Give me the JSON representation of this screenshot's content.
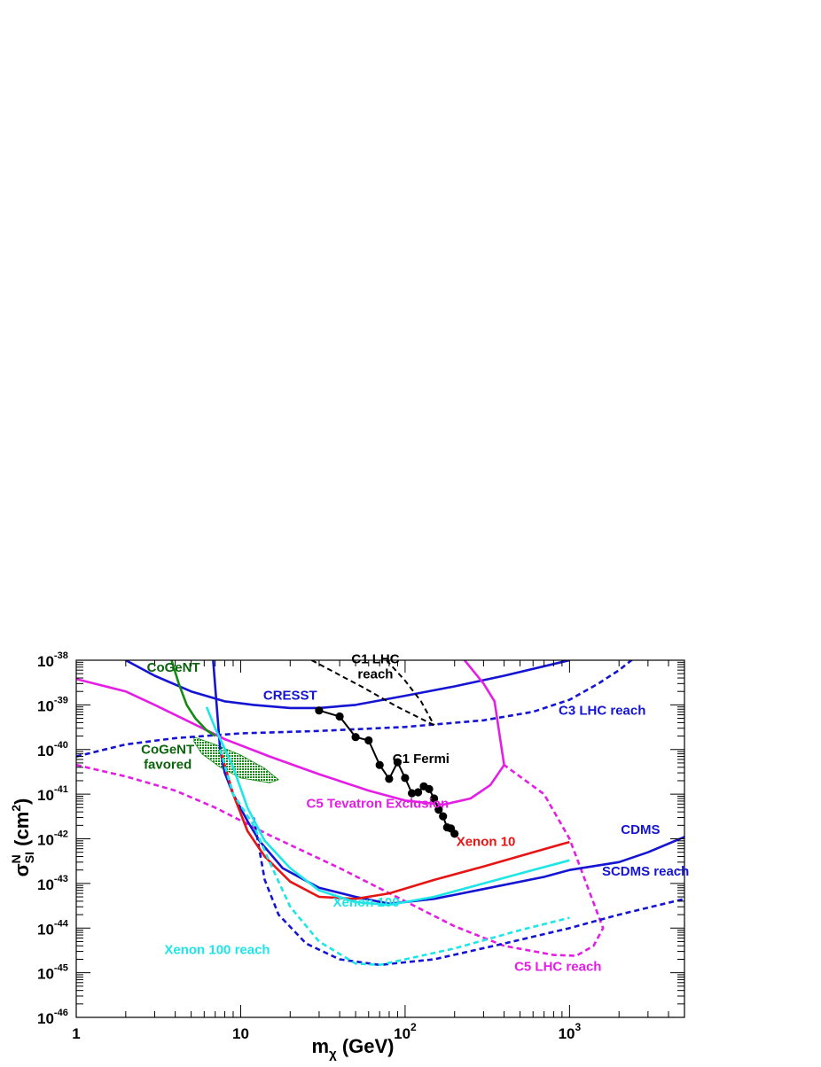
{
  "chart_data": {
    "type": "line",
    "xscale": "log",
    "yscale": "log",
    "xlim": [
      1,
      5000
    ],
    "ylim": [
      1e-46,
      1e-38
    ],
    "xlabel": {
      "main": "m",
      "sub": "χ",
      "unit": " (GeV)"
    },
    "ylabel": {
      "main": "σ",
      "sup": "N",
      "sub": "SI",
      "unit": " (cm",
      "unit_sup": "2",
      "unit_end": ")"
    },
    "x_ticks": [
      {
        "value": 1,
        "label": "1"
      },
      {
        "value": 10,
        "label": "10"
      },
      {
        "value": 100,
        "label": "10",
        "exp": "2"
      },
      {
        "value": 1000,
        "label": "10",
        "exp": "3"
      }
    ],
    "y_ticks": [
      {
        "value": 1e-38,
        "label": "10",
        "exp": "-38"
      },
      {
        "value": 1e-39,
        "label": "10",
        "exp": "-39"
      },
      {
        "value": 1e-40,
        "label": "10",
        "exp": "-40"
      },
      {
        "value": 1e-41,
        "label": "10",
        "exp": "-41"
      },
      {
        "value": 1e-42,
        "label": "10",
        "exp": "-42"
      },
      {
        "value": 1e-43,
        "label": "10",
        "exp": "-43"
      },
      {
        "value": 1e-44,
        "label": "10",
        "exp": "-44"
      },
      {
        "value": 1e-45,
        "label": "10",
        "exp": "-45"
      },
      {
        "value": 1e-46,
        "label": "10",
        "exp": "-46"
      }
    ],
    "colors": {
      "blue": "#1414d2",
      "magenta": "#e41ee4",
      "cyan": "#1ee6e6",
      "red": "#e61414",
      "green": "#148c14",
      "dark_green": "#0c640c",
      "black": "#000000"
    },
    "series": [
      {
        "key": "cresst",
        "color": "blue",
        "dash": false,
        "points": [
          [
            2,
            1e-38
          ],
          [
            3,
            4.5e-39
          ],
          [
            5,
            2e-39
          ],
          [
            8,
            1.2e-39
          ],
          [
            12,
            1e-39
          ],
          [
            20,
            8.5e-40
          ],
          [
            30,
            8.5e-40
          ],
          [
            50,
            1e-39
          ],
          [
            100,
            1.6e-39
          ],
          [
            200,
            2.6e-39
          ],
          [
            400,
            4.5e-39
          ],
          [
            1000,
            1e-38
          ]
        ]
      },
      {
        "key": "c3-lhc-reach",
        "color": "blue",
        "dash": true,
        "points": [
          [
            1,
            7e-41
          ],
          [
            2,
            1.3e-40
          ],
          [
            4,
            1.8e-40
          ],
          [
            10,
            2.3e-40
          ],
          [
            30,
            2.6e-40
          ],
          [
            100,
            3.2e-40
          ],
          [
            300,
            4.5e-40
          ],
          [
            600,
            7e-40
          ],
          [
            1000,
            1.3e-39
          ],
          [
            1500,
            3e-39
          ],
          [
            2000,
            6e-39
          ],
          [
            2600,
            1.3e-38
          ]
        ]
      },
      {
        "key": "c5-tevatron",
        "color": "magenta",
        "dash": false,
        "points": [
          [
            1,
            3.8e-39
          ],
          [
            2,
            2e-39
          ],
          [
            3,
            1e-39
          ],
          [
            5,
            4e-40
          ],
          [
            8,
            1.7e-40
          ],
          [
            15,
            7e-41
          ],
          [
            30,
            2.8e-41
          ],
          [
            60,
            1.2e-41
          ],
          [
            100,
            7.2e-42
          ],
          [
            170,
            5.8e-42
          ],
          [
            250,
            8e-42
          ],
          [
            330,
            1.6e-41
          ],
          [
            400,
            4.5e-41
          ]
        ]
      },
      {
        "key": "c5-tevatron-upper",
        "color": "magenta",
        "dash": false,
        "points": [
          [
            230,
            1e-38
          ],
          [
            300,
            3e-39
          ],
          [
            350,
            1.2e-39
          ],
          [
            400,
            4.5e-41
          ]
        ]
      },
      {
        "key": "c5-lhc-reach",
        "color": "magenta",
        "dash": true,
        "points": [
          [
            1,
            4.5e-41
          ],
          [
            2,
            2.5e-41
          ],
          [
            4,
            1.2e-41
          ],
          [
            7,
            5e-42
          ],
          [
            15,
            1.2e-42
          ],
          [
            40,
            2.2e-43
          ],
          [
            100,
            4e-44
          ],
          [
            200,
            1.1e-44
          ],
          [
            400,
            4e-45
          ],
          [
            800,
            2.5e-45
          ],
          [
            1100,
            2.4e-45
          ],
          [
            1400,
            4e-45
          ],
          [
            1600,
            1e-44
          ],
          [
            1000,
            1e-42
          ],
          [
            700,
            1e-41
          ],
          [
            400,
            4.5e-41
          ]
        ]
      },
      {
        "key": "cdms",
        "color": "blue",
        "dash": false,
        "points": [
          [
            6.8,
            1e-38
          ],
          [
            7.5,
            1e-40
          ],
          [
            8,
            3e-41
          ],
          [
            9,
            1e-41
          ],
          [
            11,
            2.5e-42
          ],
          [
            13,
            9e-43
          ],
          [
            18,
            2.2e-43
          ],
          [
            30,
            8e-44
          ],
          [
            50,
            5e-44
          ],
          [
            80,
            3.5e-44
          ],
          [
            150,
            4.5e-44
          ],
          [
            300,
            7.5e-44
          ],
          [
            700,
            1.4e-43
          ],
          [
            1000,
            2e-43
          ],
          [
            2000,
            3e-43
          ],
          [
            3000,
            5e-43
          ],
          [
            5000,
            1.1e-42
          ]
        ]
      },
      {
        "key": "scdms-reach",
        "color": "blue",
        "dash": true,
        "points": [
          [
            12,
            3e-42
          ],
          [
            14,
            1.2e-43
          ],
          [
            17,
            2e-44
          ],
          [
            25,
            4.5e-45
          ],
          [
            40,
            2e-45
          ],
          [
            70,
            1.5e-45
          ],
          [
            150,
            2e-45
          ],
          [
            400,
            4.5e-45
          ],
          [
            1000,
            1e-44
          ],
          [
            2000,
            2e-44
          ],
          [
            5000,
            4.5e-44
          ]
        ]
      },
      {
        "key": "xenon10",
        "color": "red",
        "dash": false,
        "points": [
          [
            7.5,
            1e-40
          ],
          [
            9,
            1e-41
          ],
          [
            11,
            1.5e-42
          ],
          [
            14,
            4e-43
          ],
          [
            20,
            1.1e-43
          ],
          [
            30,
            5e-44
          ],
          [
            50,
            4.5e-44
          ],
          [
            80,
            6e-44
          ],
          [
            150,
            1.2e-43
          ],
          [
            300,
            2.4e-43
          ],
          [
            600,
            5e-43
          ],
          [
            1000,
            8.5e-43
          ]
        ]
      },
      {
        "key": "xenon100",
        "color": "cyan",
        "dash": false,
        "points": [
          [
            6.2,
            9e-40
          ],
          [
            7,
            3e-40
          ],
          [
            9,
            4e-41
          ],
          [
            11,
            5e-42
          ],
          [
            14,
            9e-43
          ],
          [
            20,
            2.2e-43
          ],
          [
            30,
            7e-44
          ],
          [
            50,
            3.8e-44
          ],
          [
            80,
            3.3e-44
          ],
          [
            150,
            5e-44
          ],
          [
            300,
            1e-43
          ],
          [
            600,
            2e-43
          ],
          [
            1000,
            3.3e-43
          ]
        ]
      },
      {
        "key": "xenon100-reach",
        "color": "cyan",
        "dash": true,
        "points": [
          [
            7.5,
            1e-40
          ],
          [
            9,
            1e-41
          ],
          [
            12,
            2e-42
          ],
          [
            15,
            3e-43
          ],
          [
            20,
            3e-44
          ],
          [
            30,
            5e-45
          ],
          [
            50,
            1.6e-45
          ],
          [
            70,
            1.5e-45
          ],
          [
            100,
            2e-45
          ],
          [
            200,
            3.5e-45
          ],
          [
            500,
            9e-45
          ],
          [
            1000,
            1.7e-44
          ]
        ]
      },
      {
        "key": "cogent",
        "color": "green",
        "dash": false,
        "points": [
          [
            3.8,
            1e-38
          ],
          [
            4.2,
            3e-39
          ],
          [
            4.7,
            1e-39
          ],
          [
            5.3,
            5e-40
          ],
          [
            6.2,
            2.7e-40
          ],
          [
            7,
            2e-40
          ]
        ]
      },
      {
        "key": "c1-lhc-reach-a",
        "color": "black",
        "dash": true,
        "points": [
          [
            27,
            1e-38
          ],
          [
            55,
            2.5e-39
          ],
          [
            90,
            9e-40
          ],
          [
            150,
            3.5e-40
          ]
        ]
      },
      {
        "key": "c1-lhc-reach-b",
        "color": "black",
        "dash": true,
        "points": [
          [
            77,
            1e-38
          ],
          [
            100,
            3.5e-39
          ],
          [
            125,
            1.2e-39
          ],
          [
            150,
            3.5e-40
          ]
        ]
      },
      {
        "key": "c1-fermi",
        "color": "black",
        "dash": false,
        "markers": true,
        "points": [
          [
            30,
            7.5e-40
          ],
          [
            40,
            5.5e-40
          ],
          [
            50,
            1.9e-40
          ],
          [
            60,
            1.6e-40
          ],
          [
            70,
            4.5e-41
          ],
          [
            80,
            2.2e-41
          ],
          [
            90,
            5.2e-41
          ],
          [
            100,
            2.3e-41
          ],
          [
            110,
            1.05e-41
          ],
          [
            120,
            1.1e-41
          ],
          [
            130,
            1.5e-41
          ],
          [
            140,
            1.3e-41
          ],
          [
            150,
            8e-42
          ],
          [
            160,
            4.5e-42
          ],
          [
            170,
            3.2e-42
          ],
          [
            180,
            1.8e-42
          ],
          [
            190,
            1.7e-42
          ],
          [
            200,
            1.3e-42
          ]
        ]
      }
    ],
    "region": {
      "key": "cogent-favored",
      "color": "green",
      "points": [
        [
          5.2,
          1.9e-40
        ],
        [
          7,
          1.3e-40
        ],
        [
          10,
          7.5e-41
        ],
        [
          14,
          3.8e-41
        ],
        [
          17,
          2.1e-41
        ],
        [
          15,
          1.8e-41
        ],
        [
          10,
          2.3e-41
        ],
        [
          7.5,
          4e-41
        ],
        [
          5.8,
          8e-41
        ],
        [
          5.2,
          1.5e-40
        ]
      ]
    },
    "annotations": [
      {
        "key": "cogent",
        "lines": [
          "CoGeNT"
        ],
        "color": "dark_green",
        "x": 3.9,
        "y": 5.5e-39,
        "anchor": "middle"
      },
      {
        "key": "cogent-favored",
        "lines": [
          "CoGeNT",
          "favored"
        ],
        "color": "dark_green",
        "x": 3.6,
        "y": 8e-41,
        "anchor": "middle"
      },
      {
        "key": "cresst",
        "lines": [
          "CRESST"
        ],
        "color": "blue",
        "x": 20,
        "y": 1.3e-39,
        "anchor": "middle"
      },
      {
        "key": "c1-lhc",
        "lines": [
          "C1 LHC",
          "reach"
        ],
        "color": "black",
        "x": 66,
        "y": 8.6e-39,
        "anchor": "middle"
      },
      {
        "key": "c3-lhc",
        "lines": [
          "C3 LHC reach"
        ],
        "color": "blue",
        "x": 1580,
        "y": 6e-40,
        "anchor": "middle"
      },
      {
        "key": "c1-fermi",
        "lines": [
          "C1 Fermi"
        ],
        "color": "black",
        "x": 125,
        "y": 5e-41,
        "anchor": "middle"
      },
      {
        "key": "c5-tevatron",
        "lines": [
          "C5 Tevatron Exclusion"
        ],
        "color": "magenta",
        "x": 68,
        "y": 5e-42,
        "anchor": "middle"
      },
      {
        "key": "xenon10",
        "lines": [
          "Xenon 10"
        ],
        "color": "red",
        "x": 310,
        "y": 7e-43,
        "anchor": "middle"
      },
      {
        "key": "cdms",
        "lines": [
          "CDMS"
        ],
        "color": "blue",
        "x": 2700,
        "y": 1.3e-42,
        "anchor": "middle"
      },
      {
        "key": "xenon100",
        "lines": [
          "Xenon 100"
        ],
        "color": "cyan",
        "x": 58,
        "y": 3e-44,
        "anchor": "middle"
      },
      {
        "key": "scdms",
        "lines": [
          "SCDMS reach"
        ],
        "color": "blue",
        "x": 2900,
        "y": 1.5e-43,
        "anchor": "middle"
      },
      {
        "key": "xenon100-reach",
        "lines": [
          "Xenon 100 reach"
        ],
        "color": "cyan",
        "x": 7.2,
        "y": 2.6e-45,
        "anchor": "middle"
      },
      {
        "key": "c5-lhc",
        "lines": [
          "C5 LHC reach"
        ],
        "color": "magenta",
        "x": 850,
        "y": 1.1e-45,
        "anchor": "middle"
      }
    ]
  }
}
